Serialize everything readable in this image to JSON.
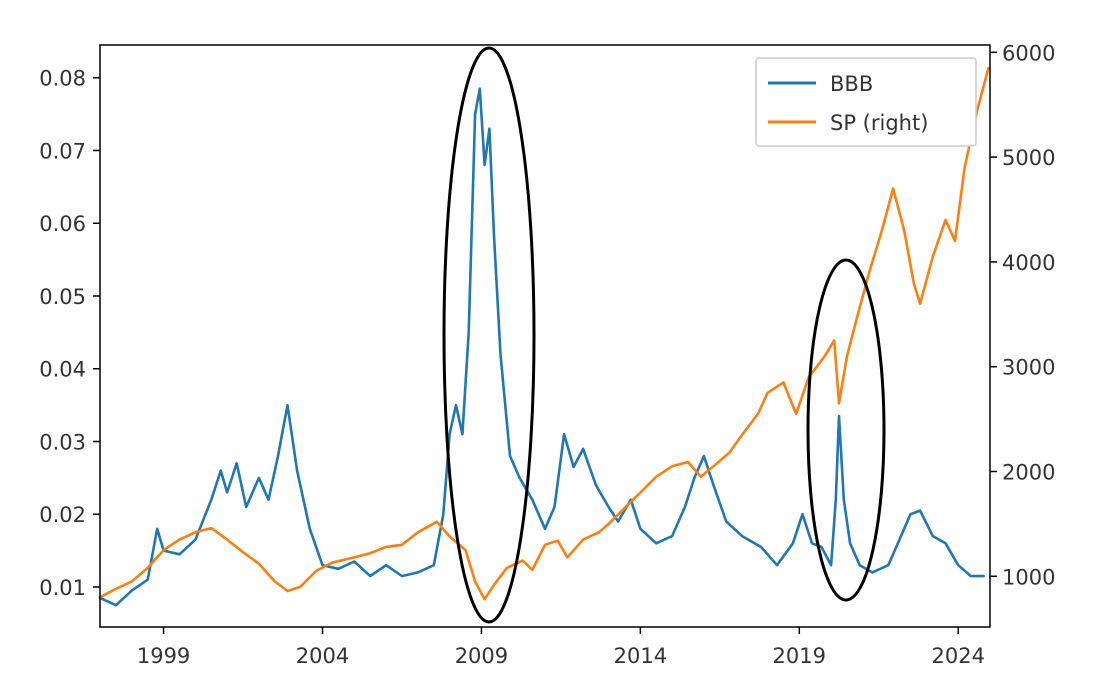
{
  "chart_data": {
    "type": "line",
    "title": "",
    "xlabel": "",
    "ylabel": "",
    "y2label": "",
    "xlim": [
      1997.0,
      2025.0
    ],
    "ylim_left": [
      0.0045,
      0.0845
    ],
    "ylim_right": [
      516,
      6070
    ],
    "x_ticks": [
      {
        "value": 1999,
        "label": "1999"
      },
      {
        "value": 2004,
        "label": "2004"
      },
      {
        "value": 2009,
        "label": "2009"
      },
      {
        "value": 2014,
        "label": "2014"
      },
      {
        "value": 2019,
        "label": "2019"
      },
      {
        "value": 2024,
        "label": "2024"
      }
    ],
    "y_ticks_left": [
      {
        "value": 0.01,
        "label": "0.01"
      },
      {
        "value": 0.02,
        "label": "0.02"
      },
      {
        "value": 0.03,
        "label": "0.03"
      },
      {
        "value": 0.04,
        "label": "0.04"
      },
      {
        "value": 0.05,
        "label": "0.05"
      },
      {
        "value": 0.06,
        "label": "0.06"
      },
      {
        "value": 0.07,
        "label": "0.07"
      },
      {
        "value": 0.08,
        "label": "0.08"
      }
    ],
    "y_ticks_right": [
      {
        "value": 1000,
        "label": "1000"
      },
      {
        "value": 2000,
        "label": "2000"
      },
      {
        "value": 3000,
        "label": "3000"
      },
      {
        "value": 4000,
        "label": "4000"
      },
      {
        "value": 5000,
        "label": "5000"
      },
      {
        "value": 6000,
        "label": "6000"
      }
    ],
    "grid": false,
    "legend_position": "top-right",
    "series": [
      {
        "name": "BBB",
        "axis": "left",
        "color": "#1f77b4",
        "points": [
          [
            1997.0,
            0.0085
          ],
          [
            1997.5,
            0.0075
          ],
          [
            1998.0,
            0.0095
          ],
          [
            1998.5,
            0.011
          ],
          [
            1998.8,
            0.018
          ],
          [
            1999.0,
            0.015
          ],
          [
            1999.5,
            0.0145
          ],
          [
            2000.0,
            0.0165
          ],
          [
            2000.5,
            0.022
          ],
          [
            2000.8,
            0.026
          ],
          [
            2001.0,
            0.023
          ],
          [
            2001.3,
            0.027
          ],
          [
            2001.6,
            0.021
          ],
          [
            2002.0,
            0.025
          ],
          [
            2002.3,
            0.022
          ],
          [
            2002.6,
            0.028
          ],
          [
            2002.9,
            0.035
          ],
          [
            2003.2,
            0.026
          ],
          [
            2003.6,
            0.018
          ],
          [
            2004.0,
            0.013
          ],
          [
            2004.5,
            0.0125
          ],
          [
            2005.0,
            0.0135
          ],
          [
            2005.5,
            0.0115
          ],
          [
            2006.0,
            0.013
          ],
          [
            2006.5,
            0.0115
          ],
          [
            2007.0,
            0.012
          ],
          [
            2007.5,
            0.013
          ],
          [
            2007.8,
            0.02
          ],
          [
            2008.0,
            0.031
          ],
          [
            2008.2,
            0.035
          ],
          [
            2008.4,
            0.031
          ],
          [
            2008.6,
            0.045
          ],
          [
            2008.8,
            0.075
          ],
          [
            2008.95,
            0.0785
          ],
          [
            2009.1,
            0.068
          ],
          [
            2009.25,
            0.073
          ],
          [
            2009.4,
            0.058
          ],
          [
            2009.6,
            0.042
          ],
          [
            2009.9,
            0.028
          ],
          [
            2010.2,
            0.025
          ],
          [
            2010.6,
            0.022
          ],
          [
            2011.0,
            0.018
          ],
          [
            2011.3,
            0.021
          ],
          [
            2011.6,
            0.031
          ],
          [
            2011.9,
            0.0265
          ],
          [
            2012.2,
            0.029
          ],
          [
            2012.6,
            0.024
          ],
          [
            2013.0,
            0.021
          ],
          [
            2013.3,
            0.019
          ],
          [
            2013.7,
            0.022
          ],
          [
            2014.0,
            0.018
          ],
          [
            2014.5,
            0.016
          ],
          [
            2015.0,
            0.017
          ],
          [
            2015.4,
            0.021
          ],
          [
            2015.7,
            0.025
          ],
          [
            2016.0,
            0.028
          ],
          [
            2016.3,
            0.024
          ],
          [
            2016.7,
            0.019
          ],
          [
            2017.2,
            0.017
          ],
          [
            2017.8,
            0.0155
          ],
          [
            2018.3,
            0.013
          ],
          [
            2018.8,
            0.016
          ],
          [
            2019.1,
            0.02
          ],
          [
            2019.4,
            0.016
          ],
          [
            2019.7,
            0.0155
          ],
          [
            2020.0,
            0.013
          ],
          [
            2020.15,
            0.022
          ],
          [
            2020.25,
            0.0335
          ],
          [
            2020.4,
            0.022
          ],
          [
            2020.6,
            0.016
          ],
          [
            2020.9,
            0.013
          ],
          [
            2021.3,
            0.012
          ],
          [
            2021.8,
            0.013
          ],
          [
            2022.2,
            0.017
          ],
          [
            2022.5,
            0.02
          ],
          [
            2022.8,
            0.0205
          ],
          [
            2023.2,
            0.017
          ],
          [
            2023.6,
            0.016
          ],
          [
            2024.0,
            0.013
          ],
          [
            2024.4,
            0.0115
          ],
          [
            2024.8,
            0.0115
          ]
        ]
      },
      {
        "name": "SP (right)",
        "axis": "right",
        "color": "#ff7f0e",
        "points": [
          [
            1997.0,
            800
          ],
          [
            1997.5,
            880
          ],
          [
            1998.0,
            950
          ],
          [
            1998.5,
            1080
          ],
          [
            1999.0,
            1250
          ],
          [
            1999.5,
            1350
          ],
          [
            2000.0,
            1420
          ],
          [
            2000.5,
            1460
          ],
          [
            2001.0,
            1350
          ],
          [
            2001.5,
            1230
          ],
          [
            2002.0,
            1120
          ],
          [
            2002.5,
            950
          ],
          [
            2002.9,
            860
          ],
          [
            2003.3,
            900
          ],
          [
            2003.8,
            1050
          ],
          [
            2004.3,
            1130
          ],
          [
            2005.0,
            1180
          ],
          [
            2005.5,
            1220
          ],
          [
            2006.0,
            1280
          ],
          [
            2006.5,
            1300
          ],
          [
            2007.0,
            1420
          ],
          [
            2007.6,
            1520
          ],
          [
            2008.0,
            1380
          ],
          [
            2008.5,
            1250
          ],
          [
            2008.8,
            950
          ],
          [
            2009.1,
            780
          ],
          [
            2009.4,
            920
          ],
          [
            2009.8,
            1080
          ],
          [
            2010.3,
            1150
          ],
          [
            2010.6,
            1060
          ],
          [
            2011.0,
            1300
          ],
          [
            2011.4,
            1340
          ],
          [
            2011.7,
            1180
          ],
          [
            2012.2,
            1350
          ],
          [
            2012.7,
            1420
          ],
          [
            2013.0,
            1500
          ],
          [
            2013.5,
            1650
          ],
          [
            2014.0,
            1800
          ],
          [
            2014.5,
            1950
          ],
          [
            2015.0,
            2050
          ],
          [
            2015.5,
            2090
          ],
          [
            2015.9,
            1950
          ],
          [
            2016.3,
            2050
          ],
          [
            2016.8,
            2180
          ],
          [
            2017.2,
            2350
          ],
          [
            2017.7,
            2550
          ],
          [
            2018.0,
            2750
          ],
          [
            2018.5,
            2850
          ],
          [
            2018.9,
            2550
          ],
          [
            2019.3,
            2900
          ],
          [
            2019.8,
            3100
          ],
          [
            2020.1,
            3250
          ],
          [
            2020.25,
            2650
          ],
          [
            2020.5,
            3100
          ],
          [
            2020.8,
            3450
          ],
          [
            2021.2,
            3900
          ],
          [
            2021.6,
            4300
          ],
          [
            2021.95,
            4700
          ],
          [
            2022.3,
            4300
          ],
          [
            2022.6,
            3800
          ],
          [
            2022.8,
            3600
          ],
          [
            2023.2,
            4050
          ],
          [
            2023.6,
            4400
          ],
          [
            2023.9,
            4200
          ],
          [
            2024.2,
            4900
          ],
          [
            2024.6,
            5450
          ],
          [
            2024.95,
            5850
          ]
        ]
      }
    ]
  }
}
